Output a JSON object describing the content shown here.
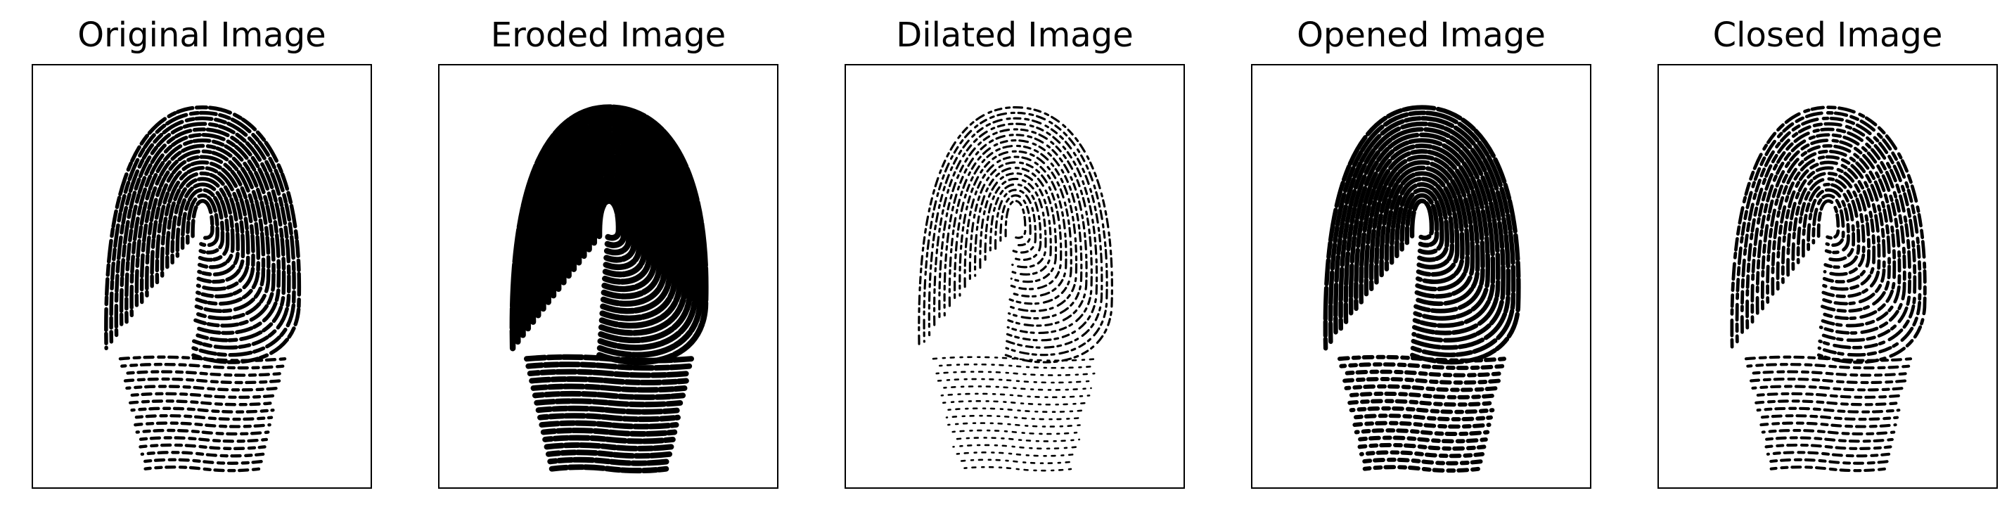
{
  "figure": {
    "panels": [
      {
        "id": "original",
        "title": "Original Image",
        "variant": "original"
      },
      {
        "id": "eroded",
        "title": "Eroded Image",
        "variant": "eroded"
      },
      {
        "id": "dilated",
        "title": "Dilated Image",
        "variant": "dilated"
      },
      {
        "id": "opened",
        "title": "Opened Image",
        "variant": "opened"
      },
      {
        "id": "closed",
        "title": "Closed Image",
        "variant": "closed"
      }
    ],
    "colors": {
      "ink": "#000000",
      "paper": "#ffffff"
    }
  }
}
